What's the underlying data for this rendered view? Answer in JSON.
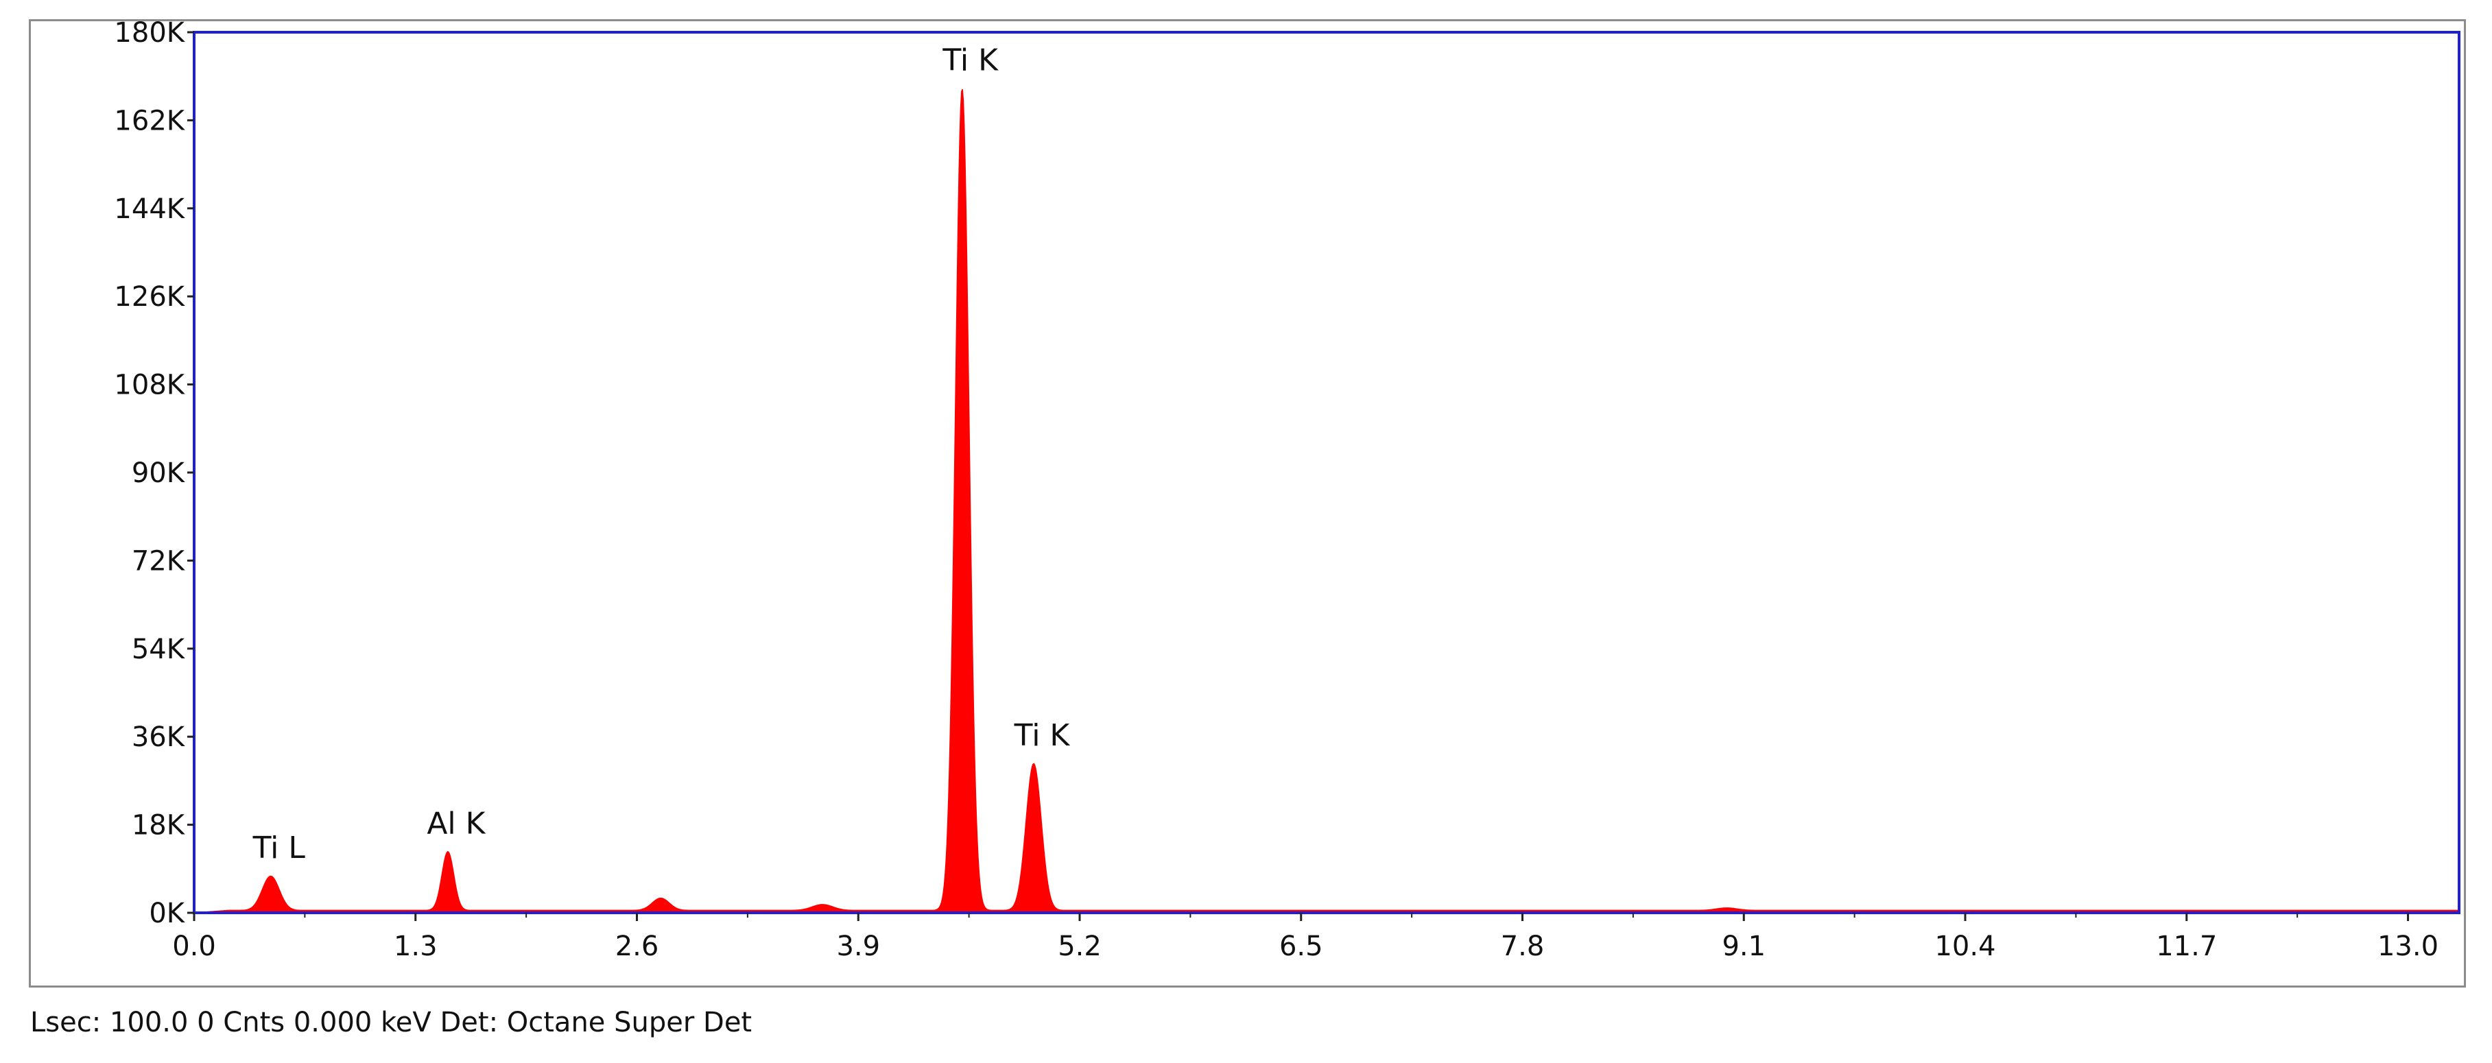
{
  "chart_data": {
    "type": "area",
    "title": "",
    "xlabel": "",
    "ylabel": "",
    "xlim": [
      0.0,
      13.3
    ],
    "ylim": [
      0,
      180000
    ],
    "x_ticks": [
      0.0,
      1.3,
      2.6,
      3.9,
      5.2,
      6.5,
      7.8,
      9.1,
      10.4,
      11.7,
      13.0
    ],
    "x_tick_labels": [
      "0.0",
      "1.3",
      "2.6",
      "3.9",
      "5.2",
      "6.5",
      "7.8",
      "9.1",
      "10.4",
      "11.7",
      "13.0"
    ],
    "y_ticks": [
      0,
      18000,
      36000,
      54000,
      72000,
      90000,
      108000,
      126000,
      144000,
      162000,
      180000
    ],
    "y_tick_labels": [
      "0K",
      "18K",
      "36K",
      "54K",
      "72K",
      "90K",
      "108K",
      "126K",
      "144K",
      "162K",
      "180K"
    ],
    "grid": false,
    "fill_color": "#ff0000",
    "frame_color": "#1f1fd6",
    "background": 500,
    "peaks": [
      {
        "label": "Ti L",
        "x": 0.45,
        "y": 7000,
        "width": 0.05
      },
      {
        "label": "Al K",
        "x": 1.49,
        "y": 12000,
        "width": 0.035
      },
      {
        "label": "",
        "x": 2.74,
        "y": 2500,
        "width": 0.05
      },
      {
        "label": "",
        "x": 3.69,
        "y": 1200,
        "width": 0.06
      },
      {
        "label": "Ti K",
        "x": 4.51,
        "y": 168000,
        "width": 0.04
      },
      {
        "label": "Ti K",
        "x": 4.93,
        "y": 30000,
        "width": 0.045
      },
      {
        "label": "",
        "x": 9.0,
        "y": 500,
        "width": 0.06
      }
    ],
    "peak_labels": [
      {
        "text": "Ti L",
        "x": 0.45,
        "y": 7000
      },
      {
        "text": "Al K",
        "x": 1.49,
        "y": 12000
      },
      {
        "text": "Ti K",
        "x": 4.51,
        "y": 168000
      },
      {
        "text": "Ti K",
        "x": 4.93,
        "y": 30000
      }
    ]
  },
  "status": {
    "text": "Lsec: 100.0 0 Cnts  0.000 keV Det: Octane Super Det"
  }
}
